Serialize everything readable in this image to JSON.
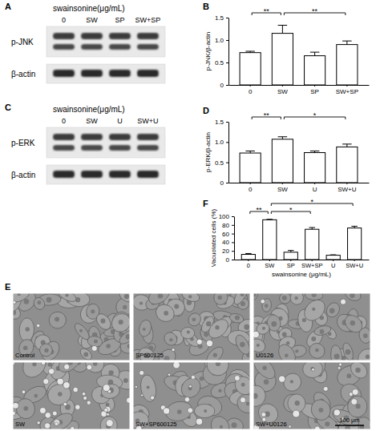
{
  "chart_data": [
    {
      "type": "bar",
      "annotations": [
        "B"
      ],
      "categories": [
        "0",
        "SW",
        "SP",
        "SW+SP"
      ],
      "values": [
        0.72,
        1.15,
        0.65,
        0.9
      ],
      "errors": [
        0.03,
        0.18,
        0.08,
        0.08
      ],
      "ylim": [
        0,
        1.5
      ],
      "yticks": [
        0,
        0.5,
        {
          "value": 1,
          "label": "1.0"
        },
        1.5
      ],
      "y_label": "p-JNK/β-actin",
      "significance": [
        {
          "from": 0,
          "to": 1,
          "label": "**"
        },
        {
          "from": 1,
          "to": 3,
          "label": "**"
        }
      ]
    },
    {
      "type": "bar",
      "annotations": [
        "D"
      ],
      "categories": [
        "0",
        "SW",
        "U",
        "SW+U"
      ],
      "values": [
        0.73,
        1.07,
        0.74,
        0.88
      ],
      "errors": [
        0.05,
        0.06,
        0.04,
        0.07
      ],
      "ylim": [
        0,
        1.5
      ],
      "yticks": [
        0,
        0.5,
        {
          "value": 1,
          "label": "1.0"
        },
        1.5
      ],
      "y_label": "p-ERK/β-actin",
      "significance": [
        {
          "from": 0,
          "to": 1,
          "label": "**"
        },
        {
          "from": 1,
          "to": 3,
          "label": "*"
        }
      ]
    },
    {
      "type": "bar",
      "annotations": [
        "F"
      ],
      "categories": [
        "0",
        "SW",
        "SP",
        "SW+SP",
        "U",
        "SW+U"
      ],
      "values": [
        12,
        92,
        17,
        70,
        10,
        73
      ],
      "errors": [
        2,
        1,
        4,
        4,
        1,
        4
      ],
      "ylim": [
        0,
        100
      ],
      "yticks": [
        0,
        20,
        40,
        60,
        80,
        100
      ],
      "y_label": "Vacuolated cells (%)",
      "x_label": "swainsonine (μg/mL)",
      "significance": [
        {
          "from": 0,
          "to": 1,
          "label": "**"
        },
        {
          "from": 1,
          "to": 3,
          "label": "*"
        },
        {
          "from": 1,
          "to": 5,
          "label": "*"
        }
      ]
    }
  ],
  "blots": [
    {
      "panel": "A",
      "header": "swainsonine(μg/mL)",
      "lanes": [
        "0",
        "SW",
        "SP",
        "SW+SP"
      ],
      "rows": [
        "p-JNK",
        "β-actin"
      ]
    },
    {
      "panel": "C",
      "header": "swainsonine(μg/mL)",
      "lanes": [
        "0",
        "SW",
        "U",
        "SW+U"
      ],
      "rows": [
        "p-ERK",
        "β-actin"
      ]
    }
  ],
  "micrographs": {
    "panel": "E",
    "labels": [
      "Control",
      "SP600125",
      "U0126",
      "SW",
      "SW+SP600125",
      "SW+U0126"
    ],
    "scale_bar": "100 μm"
  }
}
